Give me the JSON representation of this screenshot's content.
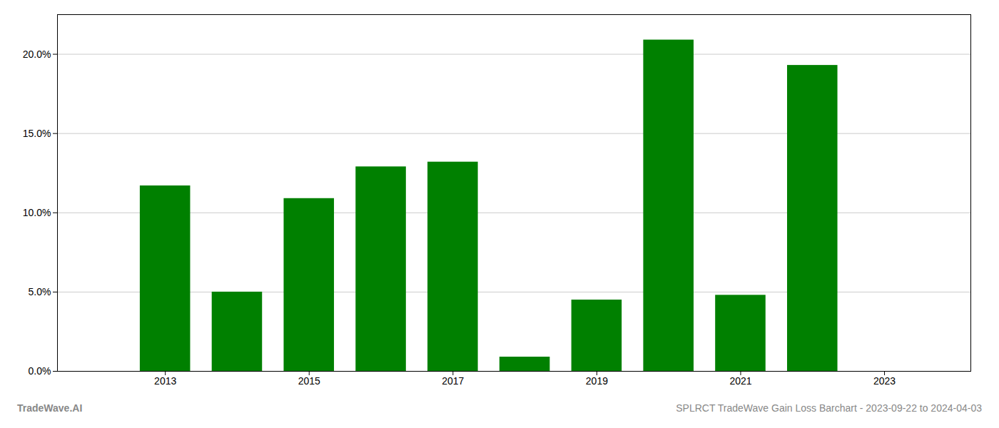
{
  "chart_data": {
    "type": "bar",
    "x": [
      2013,
      2014,
      2015,
      2016,
      2017,
      2018,
      2019,
      2020,
      2021,
      2022
    ],
    "values": [
      0.117,
      0.05,
      0.109,
      0.129,
      0.132,
      0.009,
      0.045,
      0.209,
      0.048,
      0.193
    ],
    "color": "#008000",
    "xlim": [
      2011.5,
      2024.2
    ],
    "xticks": [
      2013,
      2015,
      2017,
      2019,
      2021,
      2023
    ],
    "ylim": [
      0,
      0.225
    ],
    "yticks": [
      {
        "value": 0.0,
        "label": "0.0%"
      },
      {
        "value": 0.05,
        "label": "5.0%"
      },
      {
        "value": 0.1,
        "label": "10.0%"
      },
      {
        "value": 0.15,
        "label": "15.0%"
      },
      {
        "value": 0.2,
        "label": "20.0%"
      }
    ],
    "grid": true,
    "annotations": [
      "TradeWave.AI",
      "SPLRCT TradeWave Gain Loss Barchart - 2023-09-22 to 2024-04-03"
    ]
  }
}
